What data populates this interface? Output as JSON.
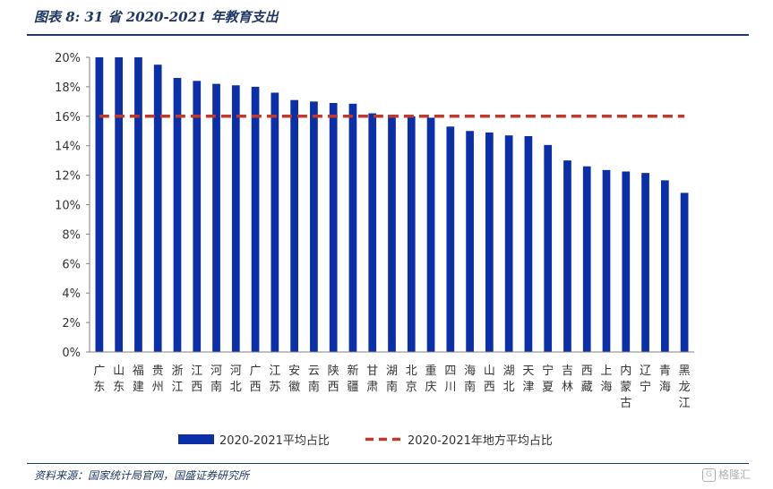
{
  "figure": {
    "title": "图表 8:  31 省 2020-2021 年教育支出",
    "source": "资料来源：国家统计局官网，国盛证券研究所",
    "watermark": "格隆汇"
  },
  "colors": {
    "bar": "#0b2fa8",
    "line": "#c0392b",
    "text": "#1f3864"
  },
  "chart_data": {
    "type": "bar",
    "categories": [
      "广东",
      "山东",
      "福建",
      "贵州",
      "浙江",
      "江西",
      "河南",
      "河北",
      "广西",
      "江苏",
      "安徽",
      "云南",
      "陕西",
      "新疆",
      "甘肃",
      "湖南",
      "北京",
      "重庆",
      "四川",
      "海南",
      "山西",
      "湖北",
      "天津",
      "宁夏",
      "吉林",
      "西藏",
      "上海",
      "内蒙古",
      "辽宁",
      "青海",
      "黑龙江"
    ],
    "series": [
      {
        "name": "2020-2021平均占比",
        "type": "bar",
        "values": [
          20.0,
          20.0,
          20.0,
          19.5,
          18.6,
          18.4,
          18.2,
          18.1,
          18.0,
          17.6,
          17.1,
          17.0,
          16.9,
          16.85,
          16.2,
          16.1,
          16.0,
          15.9,
          15.3,
          15.0,
          14.9,
          14.7,
          14.65,
          14.05,
          13.0,
          12.6,
          12.35,
          12.25,
          12.15,
          11.65,
          10.8
        ]
      },
      {
        "name": "2020-2021年地方平均占比",
        "type": "line",
        "style": "dashed",
        "values": [
          16.0,
          16.0,
          16.0,
          16.0,
          16.0,
          16.0,
          16.0,
          16.0,
          16.0,
          16.0,
          16.0,
          16.0,
          16.0,
          16.0,
          16.0,
          16.0,
          16.0,
          16.0,
          16.0,
          16.0,
          16.0,
          16.0,
          16.0,
          16.0,
          16.0,
          16.0,
          16.0,
          16.0,
          16.0,
          16.0,
          16.0
        ]
      }
    ],
    "yticks": [
      "0%",
      "2%",
      "4%",
      "6%",
      "8%",
      "10%",
      "12%",
      "14%",
      "16%",
      "18%",
      "20%"
    ],
    "ylim": [
      0,
      20
    ],
    "grid": false,
    "legend_position": "bottom"
  }
}
